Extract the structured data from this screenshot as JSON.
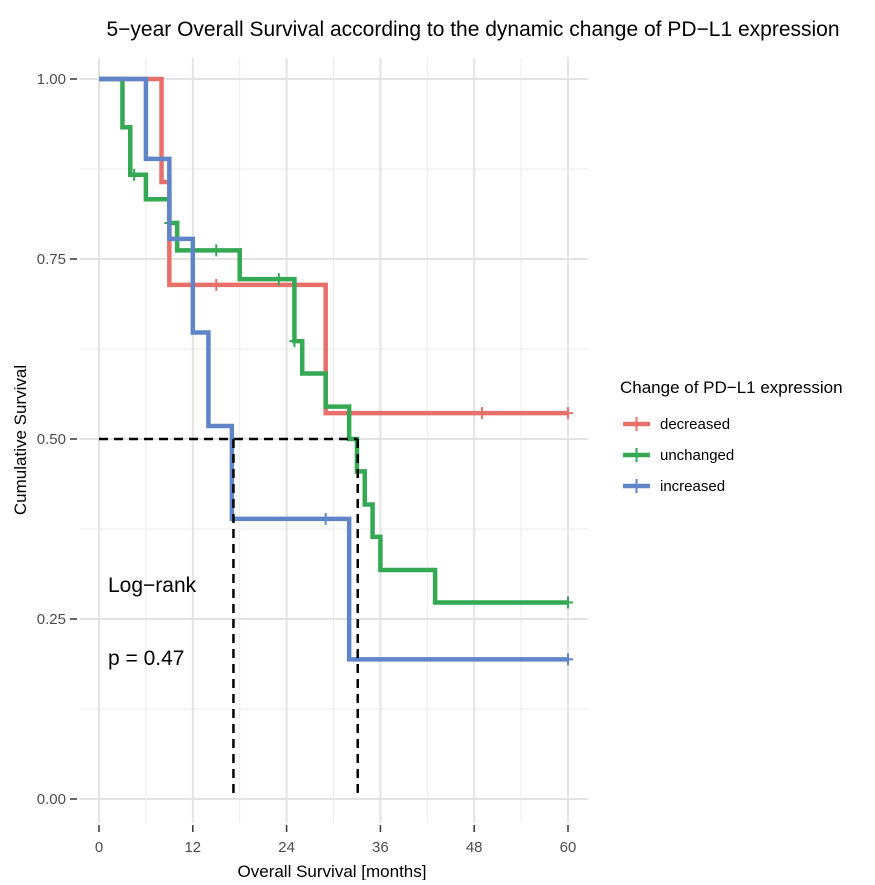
{
  "chart_data": {
    "type": "line",
    "title": "5−year Overall Survival according to the dynamic change of PD−L1 expression",
    "xlabel": "Overall Survival [months]",
    "ylabel": "Cumulative Survival",
    "xlim": [
      0,
      60
    ],
    "ylim": [
      0,
      1
    ],
    "x_ticks": [
      0,
      12,
      24,
      36,
      48,
      60
    ],
    "x_tick_labels": [
      "0",
      "12",
      "24",
      "36",
      "48",
      "60"
    ],
    "y_ticks": [
      0,
      0.25,
      0.5,
      0.75,
      1
    ],
    "y_tick_labels": [
      "0.00",
      "0.25",
      "0.50",
      "0.75",
      "1.00"
    ],
    "grid": true,
    "legend": {
      "title": "Change of PD−L1 expression",
      "placement": "right"
    },
    "annotations": {
      "test_label": "Log−rank",
      "p_label": "p = 0.47"
    },
    "median_lines": [
      {
        "series": "increased",
        "x": 17.2,
        "y": 0.5
      },
      {
        "series": "unchanged",
        "x": 33.1,
        "y": 0.5
      }
    ],
    "series": [
      {
        "name": "decreased",
        "color": "#E8706A",
        "steps": [
          [
            0,
            1.0
          ],
          [
            8.0,
            0.857
          ],
          [
            9.0,
            0.714
          ],
          [
            29.0,
            0.536
          ]
        ],
        "end_x": 60,
        "censor_x": [
          15.0,
          49.0,
          60.0
        ]
      },
      {
        "name": "unchanged",
        "color": "#34A853",
        "steps": [
          [
            0,
            1.0
          ],
          [
            3.0,
            0.933
          ],
          [
            4.0,
            0.867
          ],
          [
            6.0,
            0.833
          ],
          [
            9.0,
            0.8
          ],
          [
            10.0,
            0.762
          ],
          [
            18.0,
            0.722
          ],
          [
            25.0,
            0.636
          ],
          [
            26.0,
            0.591
          ],
          [
            29.0,
            0.545
          ],
          [
            32.0,
            0.5
          ],
          [
            33.0,
            0.455
          ],
          [
            34.0,
            0.409
          ],
          [
            35.0,
            0.364
          ],
          [
            36.0,
            0.318
          ],
          [
            43.0,
            0.273
          ]
        ],
        "end_x": 60,
        "censor_x": [
          4.5,
          9.0,
          15.0,
          23.0,
          25.0,
          60.0
        ]
      },
      {
        "name": "increased",
        "color": "#5F85C8",
        "steps": [
          [
            0,
            1.0
          ],
          [
            6.0,
            0.889
          ],
          [
            9.0,
            0.778
          ],
          [
            12.0,
            0.648
          ],
          [
            14.0,
            0.518
          ],
          [
            17.0,
            0.389
          ],
          [
            32.0,
            0.194
          ]
        ],
        "end_x": 60,
        "censor_x": [
          29.0,
          60.0
        ]
      }
    ]
  }
}
